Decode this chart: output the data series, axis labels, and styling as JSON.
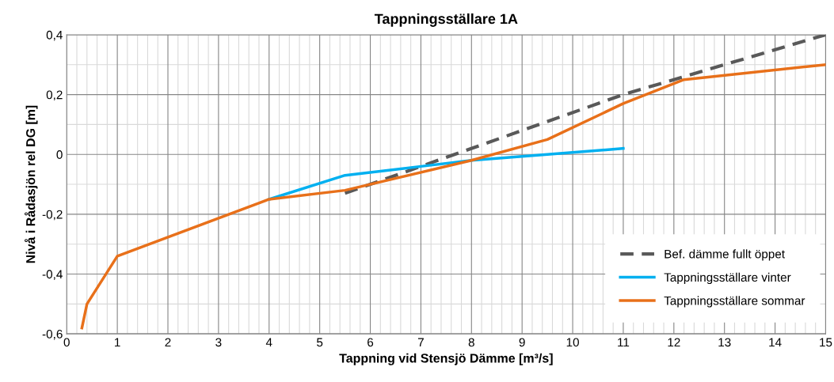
{
  "chart_data": {
    "type": "line",
    "title": "Tappningsställare 1A",
    "xlabel": "Tappning vid Stensjö Dämme [m³/s]",
    "ylabel": "Nivå i Rådasjön rel DG [m]",
    "xlim": [
      0,
      15
    ],
    "xticks": [
      0,
      1,
      2,
      3,
      4,
      5,
      6,
      7,
      8,
      9,
      10,
      11,
      12,
      13,
      14,
      15
    ],
    "ylim": [
      -0.6,
      0.4
    ],
    "yticks": [
      {
        "value": -0.6,
        "label": "-0,6"
      },
      {
        "value": -0.4,
        "label": "-0,4"
      },
      {
        "value": -0.2,
        "label": "-0,2"
      },
      {
        "value": 0,
        "label": "0"
      },
      {
        "value": 0.2,
        "label": "0,2"
      },
      {
        "value": 0.4,
        "label": "0,4"
      }
    ],
    "grid": true,
    "legend": "bottom right",
    "marker": "none",
    "series": [
      {
        "name": "Bef. dämme fullt öppet",
        "color": "#595959",
        "line_style": "dashed",
        "x": [
          5.5,
          11,
          12.2,
          15
        ],
        "values": [
          -0.13,
          0.2,
          0.26,
          0.4
        ]
      },
      {
        "name": "Tappningsställare vinter",
        "color": "#00b0f0",
        "line_style": "solid",
        "x": [
          4,
          5.5,
          7,
          8,
          9.5,
          11
        ],
        "values": [
          -0.15,
          -0.07,
          -0.04,
          -0.02,
          0,
          0.02
        ]
      },
      {
        "name": "Tappningsställare sommar",
        "color": "#e8701a",
        "line_style": "solid",
        "x": [
          0.3,
          0.4,
          1,
          4,
          5.5,
          8,
          9.5,
          11,
          12.2,
          15
        ],
        "values": [
          -0.58,
          -0.5,
          -0.34,
          -0.15,
          -0.12,
          -0.02,
          0.05,
          0.17,
          0.25,
          0.3
        ]
      }
    ]
  }
}
